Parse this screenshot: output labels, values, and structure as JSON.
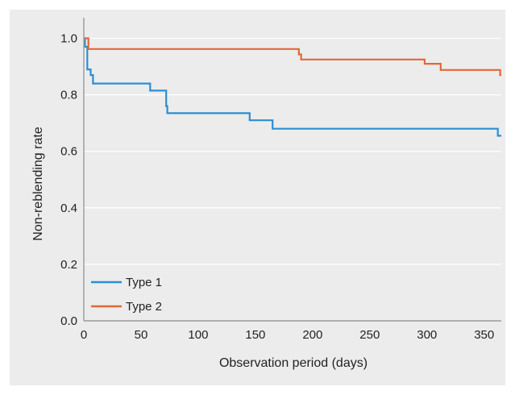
{
  "chart_data": {
    "type": "line",
    "title": "",
    "xlabel": "Observation period (days)",
    "ylabel": "Non-reblending rate",
    "xlim": [
      0,
      365
    ],
    "ylim": [
      0,
      1.05
    ],
    "x_ticks": [
      0,
      50,
      100,
      150,
      200,
      250,
      300,
      350
    ],
    "y_ticks": [
      0.0,
      0.2,
      0.4,
      0.6,
      0.8,
      1.0
    ],
    "y_tick_labels": [
      "0.0",
      "0.2",
      "0.4",
      "0.6",
      "0.8",
      "1.0"
    ],
    "grid": "horizontal",
    "legend_position": "bottom-left",
    "step": true,
    "series": [
      {
        "name": "Type 1",
        "color": "#2b8fd0",
        "x": [
          0,
          1,
          3,
          6,
          8,
          58,
          72,
          73,
          145,
          165,
          362,
          365
        ],
        "y": [
          1.0,
          0.97,
          0.89,
          0.87,
          0.84,
          0.815,
          0.76,
          0.735,
          0.71,
          0.68,
          0.655,
          0.655
        ]
      },
      {
        "name": "Type 2",
        "color": "#e2663a",
        "x": [
          0,
          3,
          4,
          188,
          190,
          298,
          312,
          364,
          365
        ],
        "y": [
          1.0,
          1.0,
          0.962,
          0.943,
          0.925,
          0.91,
          0.888,
          0.87,
          0.87
        ]
      }
    ]
  }
}
